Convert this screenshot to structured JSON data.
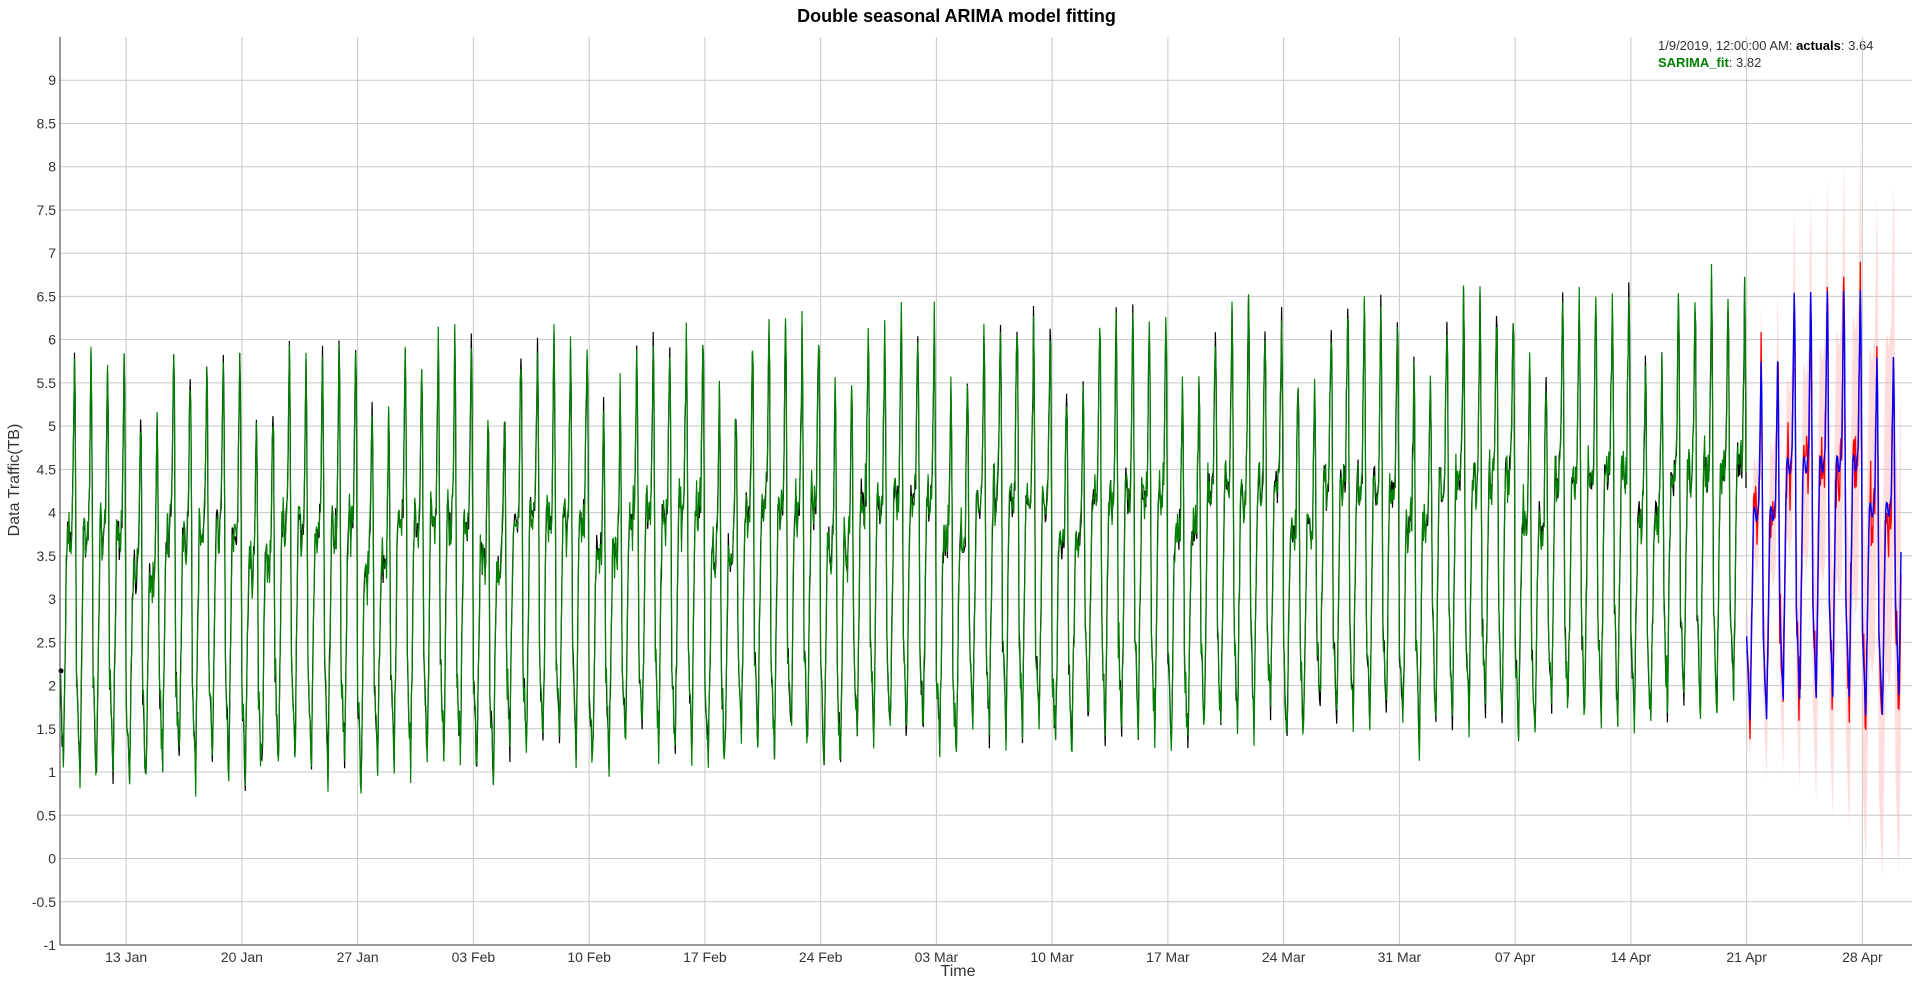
{
  "chart_data": {
    "type": "line",
    "title": "Double seasonal ARIMA model fitting",
    "xlabel": "Time",
    "ylabel": "Data Traffic(TB)",
    "ylim": [
      -1,
      9.5
    ],
    "y_ticks": [
      -1,
      -0.5,
      0,
      0.5,
      1,
      1.5,
      2,
      2.5,
      3,
      3.5,
      4,
      4.5,
      5,
      5.5,
      6,
      6.5,
      7,
      7.5,
      8,
      8.5,
      9
    ],
    "y_tick_labels": [
      "-1",
      "-0.5",
      "0",
      "0.5",
      "1",
      "1.5",
      "2",
      "2.5",
      "3",
      "3.5",
      "4",
      "4.5",
      "5",
      "5.5",
      "6",
      "6.5",
      "7",
      "7.5",
      "8",
      "8.5",
      "9"
    ],
    "x_range": [
      "2019-01-09",
      "2019-05-01"
    ],
    "x_ticks": [
      "2019-01-13",
      "2019-01-20",
      "2019-01-27",
      "2019-02-03",
      "2019-02-10",
      "2019-02-17",
      "2019-02-24",
      "2019-03-03",
      "2019-03-10",
      "2019-03-17",
      "2019-03-24",
      "2019-03-31",
      "2019-04-07",
      "2019-04-14",
      "2019-04-21",
      "2019-04-28"
    ],
    "x_tick_labels": [
      "13 Jan",
      "20 Jan",
      "27 Jan",
      "03 Feb",
      "10 Feb",
      "17 Feb",
      "24 Feb",
      "03 Mar",
      "10 Mar",
      "17 Mar",
      "24 Mar",
      "31 Mar",
      "07 Apr",
      "14 Apr",
      "21 Apr",
      "28 Apr"
    ],
    "grid": true,
    "forecast_start": "2019-04-21",
    "series": [
      {
        "name": "actuals",
        "color": "#000000"
      },
      {
        "name": "SARIMA_fit",
        "color": "#008000"
      },
      {
        "color": "#0000ff"
      },
      {
        "color": "#ff0000"
      },
      {
        "color": "#ffb3b3"
      }
    ],
    "legend": {
      "placement": "top-right",
      "timestamp": "1/9/2019, 12:00:00 AM",
      "actuals_label": "actuals",
      "actuals_value": "3.64",
      "fit_label": "SARIMA_fit",
      "fit_value": "3.82"
    }
  }
}
